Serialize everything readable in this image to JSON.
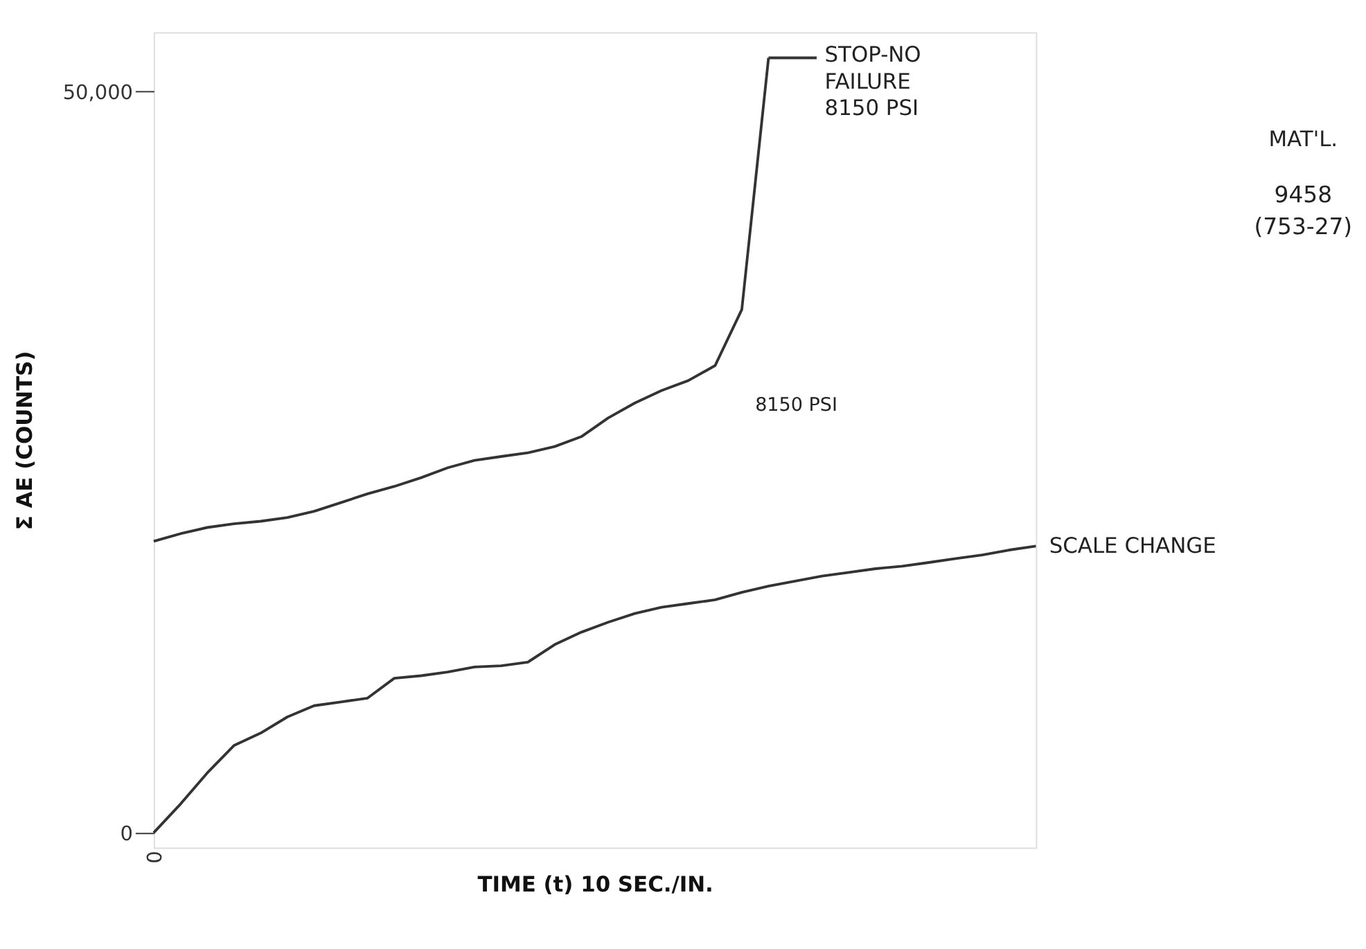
{
  "chart_data": {
    "type": "line",
    "xlabel": "TIME (t) 10 SEC./IN.",
    "ylabel": "Σ AE (COUNTS)",
    "categories": [
      "0",
      null,
      null,
      null,
      null,
      null,
      null,
      null,
      null,
      null,
      null,
      null,
      null,
      null,
      null,
      null,
      null,
      null,
      null,
      null,
      null,
      null,
      null,
      null,
      null,
      null,
      null,
      null,
      null,
      null,
      null,
      null,
      null,
      null
    ],
    "series": [
      {
        "color": "#333333",
        "values": [
          0,
          1930,
          4030,
          5880,
          6720,
          7810,
          8570,
          8820,
          9080,
          10420,
          10590,
          10840,
          11180,
          11260,
          11510,
          12690,
          13530,
          14200,
          14790,
          15210,
          15460,
          15710,
          16220,
          16640,
          16970,
          17310,
          17560,
          17810,
          17980,
          18230,
          18490,
          18740,
          19070,
          19330
        ]
      },
      {
        "color": "#333333",
        "values": [
          19660,
          20170,
          20590,
          20840,
          21010,
          21260,
          21680,
          22270,
          22860,
          23360,
          23950,
          24620,
          25120,
          25380,
          25630,
          26050,
          26720,
          27980,
          28990,
          29830,
          30500,
          31510,
          35290,
          52270,
          null,
          null,
          null,
          null,
          null,
          null,
          null,
          null,
          null,
          null
        ]
      }
    ],
    "ylim": [
      -1000,
      54000
    ],
    "yticks": [
      0,
      {
        "value": 50000,
        "label": "50,000"
      }
    ],
    "marker": "none",
    "line_style": "solid",
    "annotations": [
      "STOP-NO\nFAILURE\n8150 PSI",
      "8150 PSI",
      "SCALE CHANGE",
      "MAT'L.",
      "9458",
      "(753-27)"
    ]
  }
}
